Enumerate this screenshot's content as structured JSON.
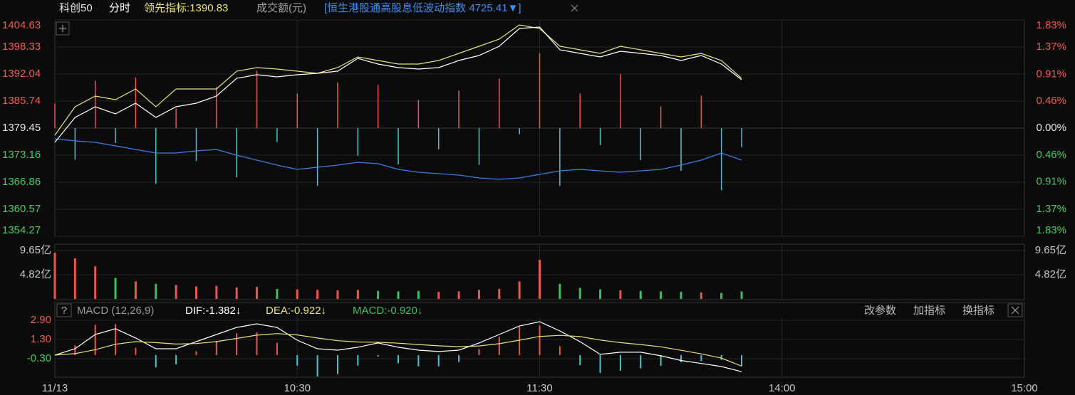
{
  "chart_data": [
    {
      "type": "line",
      "title": "科创50",
      "subtitle": "分时",
      "volume_label": "成交额(元)",
      "x": [
        0,
        5,
        10,
        15,
        20,
        25,
        30,
        35,
        40,
        45,
        50,
        55,
        60,
        65,
        70,
        75,
        80,
        85,
        90,
        95,
        100,
        105,
        110,
        115,
        120,
        125,
        130,
        135,
        140,
        145,
        150,
        155,
        160,
        165,
        170
      ],
      "xlim": [
        0,
        240
      ],
      "xticks": [
        {
          "value": 0,
          "label": "11/13"
        },
        {
          "value": 60,
          "label": "10:30"
        },
        {
          "value": 120,
          "label": "11:30"
        },
        {
          "value": 180,
          "label": "14:00"
        },
        {
          "value": 240,
          "label": "15:00"
        }
      ],
      "ylim": [
        1354.27,
        1404.63
      ],
      "yticks": [
        1404.63,
        1398.33,
        1392.04,
        1385.74,
        1379.45,
        1373.16,
        1366.86,
        1360.57,
        1354.27
      ],
      "y2lim": [
        -1.83,
        1.83
      ],
      "y2ticks": [
        {
          "value": 1.83,
          "label": "1.83%"
        },
        {
          "value": 1.37,
          "label": "1.37%"
        },
        {
          "value": 0.91,
          "label": "0.91%"
        },
        {
          "value": 0.46,
          "label": "0.46%"
        },
        {
          "value": 0,
          "label": "0.00%"
        },
        {
          "value": -0.46,
          "label": "0.46%"
        },
        {
          "value": -0.91,
          "label": "0.91%"
        },
        {
          "value": -1.37,
          "label": "1.37%"
        },
        {
          "value": -1.83,
          "label": "1.83%"
        }
      ],
      "prev_close": 1379.45,
      "grid": true,
      "series": [
        {
          "color": "#ffffff",
          "values": [
            1376.14,
            1381.93,
            1384.42,
            1382.76,
            1385.25,
            1381.93,
            1384.42,
            1385.25,
            1386.9,
            1391.05,
            1391.87,
            1391.38,
            1391.87,
            1392.21,
            1392.7,
            1395.68,
            1394.36,
            1393.53,
            1393.2,
            1393.53,
            1395.19,
            1396.35,
            1398.5,
            1402.64,
            1402.97,
            1397.67,
            1396.84,
            1396.02,
            1397.34,
            1396.84,
            1396.35,
            1395.19,
            1396.35,
            1394.36,
            1390.71
          ]
        },
        {
          "color": "#e8e27a",
          "legend": {
            "value": 1390.83,
            "label": "领先指标:1390.83"
          },
          "values": [
            1377.79,
            1384.42,
            1386.9,
            1386.07,
            1388.56,
            1384.42,
            1388.56,
            1388.56,
            1388.56,
            1392.7,
            1393.53,
            1393.2,
            1392.7,
            1392.21,
            1393.53,
            1396.02,
            1395.19,
            1394.36,
            1394.36,
            1395.19,
            1396.84,
            1398.5,
            1400.16,
            1403.47,
            1402.64,
            1398.5,
            1397.67,
            1396.84,
            1398.5,
            1397.67,
            1396.84,
            1396.02,
            1396.84,
            1395.19,
            1391.05
          ]
        },
        {
          "color": "#3d7fe6",
          "legend": {
            "value": 4725.41,
            "label": "[恒生港股通高股息低波动指数 4725.41▼]"
          },
          "values": [
            1376.96,
            1376.47,
            1376.14,
            1375.31,
            1374.48,
            1373.65,
            1373.65,
            1374.15,
            1374.48,
            1373.16,
            1372.0,
            1370.84,
            1369.84,
            1370.34,
            1370.84,
            1371.5,
            1371.17,
            1369.84,
            1369.18,
            1368.85,
            1368.52,
            1367.85,
            1367.52,
            1367.85,
            1368.68,
            1369.51,
            1369.84,
            1369.51,
            1369.18,
            1369.51,
            1369.84,
            1370.84,
            1372.0,
            1373.65,
            1372.0
          ]
        }
      ],
      "bars": {
        "up_color": "#e9584f",
        "down_color": "#4cc4cc",
        "values": [
          1385.2,
          1372.1,
          1390.5,
          1376.0,
          1391.2,
          1366.5,
          1384.0,
          1371.8,
          1389.0,
          1368.0,
          1392.8,
          1376.2,
          1387.5,
          1366.0,
          1390.1,
          1373.0,
          1389.5,
          1371.0,
          1386.0,
          1374.5,
          1388.2,
          1370.9,
          1391.0,
          1378.0,
          1396.9,
          1366.0,
          1387.5,
          1375.5,
          1392.0,
          1372.0,
          1384.5,
          1369.5,
          1387.0,
          1365.0,
          1375.0
        ]
      }
    },
    {
      "type": "bar",
      "ylim": [
        0,
        9.65
      ],
      "yticks": [
        {
          "value": 9.65,
          "label": "9.65亿"
        },
        {
          "value": 4.82,
          "label": "4.82亿"
        }
      ],
      "up_color": "#e9584f",
      "down_color": "#3fbf5f",
      "values": [
        9.2,
        8.1,
        6.5,
        4.2,
        3.5,
        3.0,
        2.8,
        2.5,
        2.6,
        2.3,
        2.4,
        2.0,
        1.9,
        1.8,
        1.7,
        1.8,
        1.6,
        1.5,
        1.6,
        1.4,
        1.5,
        1.8,
        2.0,
        3.5,
        7.8,
        3.0,
        2.2,
        1.9,
        1.7,
        1.6,
        1.5,
        1.4,
        1.3,
        1.2,
        1.5
      ]
    },
    {
      "type": "macd",
      "title": "MACD (12,26,9)",
      "help": "?",
      "buttons": [
        "改参数",
        "加指标",
        "换指标"
      ],
      "ylim": [
        -1.84,
        3.43
      ],
      "yticks": [
        {
          "value": 2.9,
          "label": "2.90"
        },
        {
          "value": 1.3,
          "label": "1.30"
        },
        {
          "value": -0.3,
          "label": "-0.30"
        }
      ],
      "series": [
        {
          "color": "#ffffff",
          "legend": {
            "value": -1.382,
            "label": "DIF:-1.382↓"
          },
          "values": [
            0.0,
            0.53,
            1.71,
            2.19,
            1.42,
            0.53,
            0.53,
            1.12,
            1.71,
            2.3,
            2.6,
            2.3,
            1.24,
            0.53,
            0.41,
            0.65,
            1.01,
            0.65,
            0.41,
            0.3,
            0.41,
            1.01,
            1.71,
            2.42,
            2.78,
            2.01,
            1.12,
            0.06,
            0.24,
            0.24,
            -0.06,
            -0.45,
            -0.7,
            -0.95,
            -1.38
          ]
        },
        {
          "color": "#e8e27a",
          "legend": {
            "value": -0.922,
            "label": "DEA:-0.922↓"
          },
          "values": [
            0.0,
            0.12,
            0.45,
            0.9,
            1.12,
            1.04,
            0.92,
            0.96,
            1.12,
            1.39,
            1.66,
            1.79,
            1.68,
            1.42,
            1.2,
            1.09,
            1.07,
            0.99,
            0.88,
            0.77,
            0.7,
            0.76,
            0.95,
            1.24,
            1.55,
            1.64,
            1.54,
            1.25,
            1.04,
            0.88,
            0.69,
            0.4,
            0.1,
            -0.25,
            -0.92
          ]
        },
        {
          "type": "bar",
          "color": "#3fbf5f",
          "up_color": "#e9584f",
          "down_color": "#4cc4cc",
          "legend": {
            "value": -0.92,
            "label": "MACD:-0.920↓"
          },
          "values": [
            0,
            0.82,
            2.52,
            2.58,
            0.6,
            -1.02,
            -0.78,
            0.32,
            1.18,
            1.82,
            1.88,
            1.02,
            -0.88,
            -1.78,
            -1.58,
            -0.88,
            -0.12,
            -0.68,
            -0.94,
            -0.94,
            -0.58,
            0.5,
            1.52,
            2.36,
            2.46,
            0.74,
            -0.84,
            -1.5,
            -1.3,
            -1.1,
            -0.9,
            -0.6,
            -0.5,
            -0.4,
            -0.92
          ]
        }
      ]
    }
  ]
}
